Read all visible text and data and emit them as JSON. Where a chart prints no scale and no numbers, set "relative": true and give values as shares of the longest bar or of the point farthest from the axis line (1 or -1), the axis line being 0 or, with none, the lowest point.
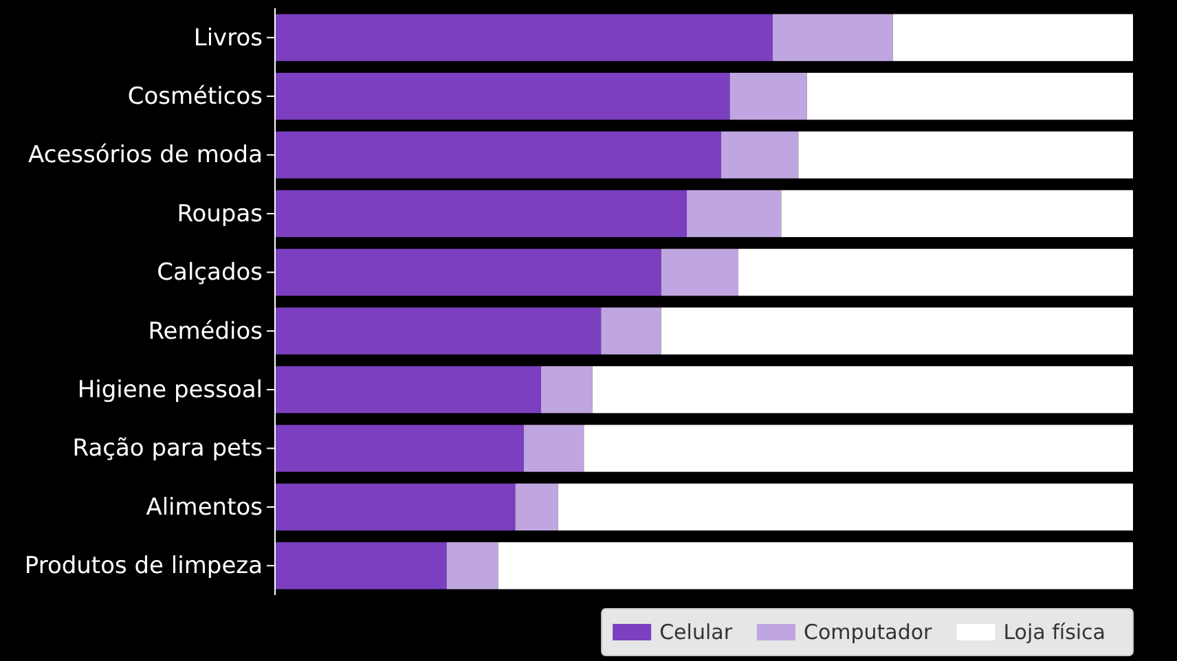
{
  "chart_data": {
    "type": "bar",
    "orientation": "horizontal",
    "stacked": true,
    "relative": true,
    "categories": [
      "Livros",
      "Cosméticos",
      "Acessórios de moda",
      "Roupas",
      "Calçados",
      "Remédios",
      "Higiene pessoal",
      "Ração para pets",
      "Alimentos",
      "Produtos de limpeza"
    ],
    "series": [
      {
        "name": "Celular",
        "color": "#7b3fbf",
        "values": [
          0.58,
          0.53,
          0.52,
          0.48,
          0.45,
          0.38,
          0.31,
          0.29,
          0.28,
          0.2
        ]
      },
      {
        "name": "Computador",
        "color": "#c0a6e0",
        "values": [
          0.14,
          0.09,
          0.09,
          0.11,
          0.09,
          0.07,
          0.06,
          0.07,
          0.05,
          0.06
        ]
      },
      {
        "name": "Loja física",
        "color": "#ffffff",
        "values": [
          0.28,
          0.38,
          0.39,
          0.41,
          0.46,
          0.55,
          0.63,
          0.64,
          0.67,
          0.74
        ]
      }
    ],
    "legend": "bottom right"
  }
}
